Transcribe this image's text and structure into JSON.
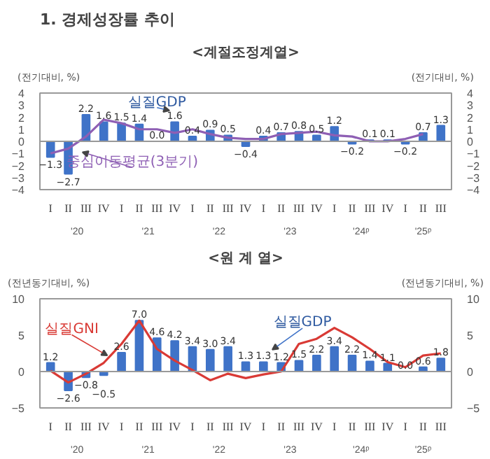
{
  "chart_data": [
    {
      "type": "bar",
      "title": "1. 경제성장률 추이",
      "subtitle": "<계절조정계열>",
      "ylabel": "(전기대비, %)",
      "y2label": "(전기대비, %)",
      "categories": [
        "I",
        "II",
        "III",
        "IV",
        "I",
        "II",
        "III",
        "IV",
        "I",
        "II",
        "III",
        "IV",
        "I",
        "II",
        "III",
        "IV",
        "I",
        "II",
        "III",
        "IV",
        "I",
        "II",
        "III"
      ],
      "series": [
        {
          "name": "실질GDP",
          "color": "#3f73c8",
          "values": [
            -1.3,
            -2.7,
            2.2,
            1.6,
            1.5,
            1.4,
            0.0,
            1.6,
            0.4,
            0.9,
            0.5,
            -0.4,
            0.4,
            0.7,
            0.8,
            0.5,
            1.2,
            -0.2,
            0.1,
            0.1,
            -0.2,
            0.7,
            1.3
          ],
          "value_labels": [
            "−1.3",
            "−2.7",
            "2.2",
            "1.6",
            "1.5",
            "1.4",
            "0.0",
            "1.6",
            "0.4",
            "0.9",
            "0.5",
            "−0.4",
            "0.4",
            "0.7",
            "0.8",
            "0.5",
            "1.2",
            "−0.2",
            "0.1",
            "0.1",
            "−0.2",
            "0.7",
            "1.3"
          ]
        },
        {
          "name": "중심이동평균(3분기)",
          "type": "line",
          "color": "#8e5fb4",
          "values": [
            -1.0,
            -0.6,
            0.4,
            1.8,
            1.5,
            1.0,
            1.0,
            0.7,
            1.0,
            0.6,
            0.3,
            0.2,
            0.2,
            0.6,
            0.7,
            0.8,
            0.5,
            0.4,
            0.0,
            0.0,
            0.2,
            0.6,
            null
          ]
        }
      ],
      "ylim": [
        -4,
        4
      ],
      "yticks": [
        -4,
        -3,
        -2,
        -1,
        0,
        1,
        2,
        3,
        4
      ],
      "y2lim": [
        -4,
        4
      ],
      "y2ticks": [
        -4,
        -3,
        -2,
        -1,
        0,
        1,
        2,
        3,
        4
      ],
      "grid": false,
      "ref_lines": [
        {
          "axis": "y",
          "value": 0
        }
      ],
      "annotations": [
        "'20",
        "'21",
        "'22",
        "'23",
        "'24ᵖ",
        "'25ᵖ"
      ]
    },
    {
      "type": "bar",
      "title": "<원 계 열>",
      "ylabel": "(전년동기대비, %)",
      "y2label": "(전년동기대비, %)",
      "categories": [
        "I",
        "II",
        "III",
        "IV",
        "I",
        "II",
        "III",
        "IV",
        "I",
        "II",
        "III",
        "IV",
        "I",
        "II",
        "III",
        "IV",
        "I",
        "II",
        "III",
        "IV",
        "I",
        "II",
        "III"
      ],
      "series": [
        {
          "name": "실질GDP",
          "color": "#3f73c8",
          "values": [
            1.2,
            -2.6,
            -0.8,
            -0.5,
            2.6,
            7.0,
            4.6,
            4.2,
            3.4,
            3.0,
            3.4,
            1.3,
            1.3,
            1.2,
            1.5,
            2.2,
            3.4,
            2.2,
            1.4,
            1.1,
            0.0,
            0.6,
            1.8
          ],
          "value_labels": [
            "1.2",
            "−2.6",
            "−0.8",
            "−0.5",
            "2.6",
            "7.0",
            "4.6",
            "4.2",
            "3.4",
            "3.0",
            "3.4",
            "1.3",
            "1.3",
            "1.2",
            "1.5",
            "2.2",
            "3.4",
            "2.2",
            "1.4",
            "1.1",
            "0.0",
            "0.6",
            "1.8"
          ]
        },
        {
          "name": "실질GNI",
          "type": "line",
          "color": "#d93a35",
          "values": [
            0.1,
            -1.5,
            -0.3,
            1.2,
            3.8,
            7.0,
            3.1,
            1.5,
            0.2,
            -1.2,
            -0.3,
            -0.9,
            -0.4,
            0.0,
            3.8,
            4.5,
            6.0,
            4.7,
            3.1,
            1.3,
            0.6,
            2.2,
            2.5
          ]
        }
      ],
      "ylim": [
        -5,
        10
      ],
      "yticks": [
        -5,
        0,
        5,
        10
      ],
      "y2lim": [
        -5,
        10
      ],
      "y2ticks": [
        -5,
        0,
        5,
        10
      ],
      "grid": false,
      "ref_lines": [
        {
          "axis": "y",
          "value": 0
        }
      ],
      "annotations": [
        "'20",
        "'21",
        "'22",
        "'23",
        "'24ᵖ",
        "'25ᵖ"
      ]
    }
  ]
}
